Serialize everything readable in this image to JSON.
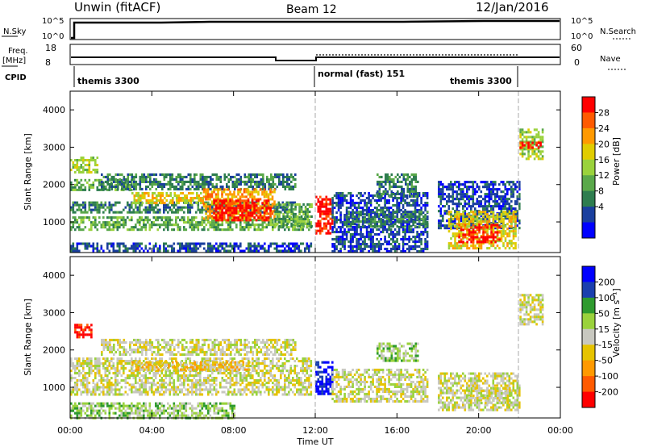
{
  "header": {
    "station": "Unwin (fitACF)",
    "beam": "Beam 12",
    "date": "12/Jan/2016"
  },
  "top_panels": {
    "nsky_label": "N.Sky",
    "nsky_ticks": [
      "10^5",
      "10^0"
    ],
    "nsearch_label": "N.Search",
    "nsearch_ticks": [
      "10^5",
      "10^0"
    ],
    "freq_label_line1": "Freq.",
    "freq_label_line2": "[MHz]",
    "freq_ticks": [
      "18",
      "8"
    ],
    "nave_label": "Nave",
    "nave_ticks": [
      "60",
      "0"
    ],
    "cpid_label": "CPID",
    "modes": [
      {
        "label": "themis 3300"
      },
      {
        "label": "normal (fast) 151"
      },
      {
        "label": "themis 3300"
      }
    ]
  },
  "xaxis": {
    "label": "Time UT",
    "ticks": [
      "00:00",
      "04:00",
      "08:00",
      "12:00",
      "16:00",
      "20:00",
      "00:00"
    ]
  },
  "chart_data": [
    {
      "type": "heatmap",
      "title": "",
      "ylabel": "Slant Range [km]",
      "ylim": [
        180,
        4500
      ],
      "yticks": [
        "4000",
        "3000",
        "2000",
        "1000"
      ],
      "colorbar_label": "Power [dB]",
      "colorbar_ticks": [
        "28",
        "24",
        "20",
        "16",
        "12",
        "8",
        "4"
      ],
      "colors": [
        "#0000ff",
        "#1a3f9e",
        "#2e7d4f",
        "#5aa84a",
        "#9ad23c",
        "#e0cc00",
        "#ff9900",
        "#ff5a00",
        "#ff0000"
      ],
      "regions": [
        {
          "t": [
            0.0,
            1.3
          ],
          "r": [
            2350,
            2750
          ],
          "level": 4
        },
        {
          "t": [
            0.0,
            3.0
          ],
          "r": [
            1850,
            2150
          ],
          "level": 3
        },
        {
          "t": [
            0.0,
            11.0
          ],
          "r": [
            1250,
            1550
          ],
          "level": 2
        },
        {
          "t": [
            0.0,
            11.8
          ],
          "r": [
            800,
            1150
          ],
          "level": 3
        },
        {
          "t": [
            0.0,
            11.8
          ],
          "r": [
            200,
            450
          ],
          "level": 1
        },
        {
          "t": [
            1.5,
            11.0
          ],
          "r": [
            1900,
            2300
          ],
          "level": 2
        },
        {
          "t": [
            3.0,
            6.5
          ],
          "r": [
            1500,
            1800
          ],
          "level": 5
        },
        {
          "t": [
            6.5,
            10.0
          ],
          "r": [
            1100,
            1900
          ],
          "level": 6
        },
        {
          "t": [
            7.0,
            9.8
          ],
          "r": [
            1050,
            1600
          ],
          "level": 8
        },
        {
          "t": [
            10.0,
            11.8
          ],
          "r": [
            900,
            1500
          ],
          "level": 3
        },
        {
          "t": [
            12.0,
            12.8
          ],
          "r": [
            700,
            1700
          ],
          "level": 8
        },
        {
          "t": [
            12.8,
            17.5
          ],
          "r": [
            200,
            1800
          ],
          "level": 1
        },
        {
          "t": [
            13.5,
            17.5
          ],
          "r": [
            850,
            1300
          ],
          "level": 2
        },
        {
          "t": [
            15.0,
            17.0
          ],
          "r": [
            1700,
            2300
          ],
          "level": 2
        },
        {
          "t": [
            18.0,
            22.0
          ],
          "r": [
            850,
            2100
          ],
          "level": 1
        },
        {
          "t": [
            18.5,
            21.8
          ],
          "r": [
            300,
            1300
          ],
          "level": 5
        },
        {
          "t": [
            19.0,
            21.0
          ],
          "r": [
            450,
            950
          ],
          "level": 8
        },
        {
          "t": [
            22.0,
            23.1
          ],
          "r": [
            2700,
            3500
          ],
          "level": 4
        },
        {
          "t": [
            22.0,
            23.0
          ],
          "r": [
            3000,
            3150
          ],
          "level": 8
        }
      ]
    },
    {
      "type": "heatmap",
      "title": "",
      "ylabel": "Slant Range [km]",
      "ylim": [
        180,
        4500
      ],
      "yticks": [
        "4000",
        "3000",
        "2000",
        "1000"
      ],
      "colorbar_label": "Velocity [m s⁻¹]",
      "colorbar_ticks": [
        "200",
        "100",
        "50",
        "15",
        "-15",
        "-50",
        "-100",
        "-200"
      ],
      "colors": [
        "#ff0000",
        "#ff5a00",
        "#ff9900",
        "#e6c300",
        "#c8c8c0",
        "#9ad23c",
        "#2e9a2e",
        "#1a3fae",
        "#0000ff"
      ],
      "regions": [
        {
          "t": [
            0.2,
            1.0
          ],
          "r": [
            2350,
            2700
          ],
          "level": 0
        },
        {
          "t": [
            0.0,
            11.8
          ],
          "r": [
            1100,
            1800
          ],
          "level": 4
        },
        {
          "t": [
            0.0,
            11.8
          ],
          "r": [
            800,
            1100
          ],
          "level": 4
        },
        {
          "t": [
            1.5,
            11.0
          ],
          "r": [
            1900,
            2300
          ],
          "level": 4
        },
        {
          "t": [
            3.0,
            9.0
          ],
          "r": [
            1500,
            1700
          ],
          "level": 3
        },
        {
          "t": [
            0.0,
            8.0
          ],
          "r": [
            200,
            600
          ],
          "level": 5
        },
        {
          "t": [
            12.0,
            12.8
          ],
          "r": [
            800,
            1700
          ],
          "level": 8
        },
        {
          "t": [
            12.8,
            17.5
          ],
          "r": [
            600,
            1500
          ],
          "level": 4
        },
        {
          "t": [
            15.0,
            17.0
          ],
          "r": [
            1700,
            2200
          ],
          "level": 5
        },
        {
          "t": [
            18.0,
            22.0
          ],
          "r": [
            400,
            1400
          ],
          "level": 4
        },
        {
          "t": [
            19.5,
            21.5
          ],
          "r": [
            600,
            1000
          ],
          "level": 4
        },
        {
          "t": [
            22.0,
            23.1
          ],
          "r": [
            2700,
            3500
          ],
          "level": 4
        }
      ]
    }
  ]
}
